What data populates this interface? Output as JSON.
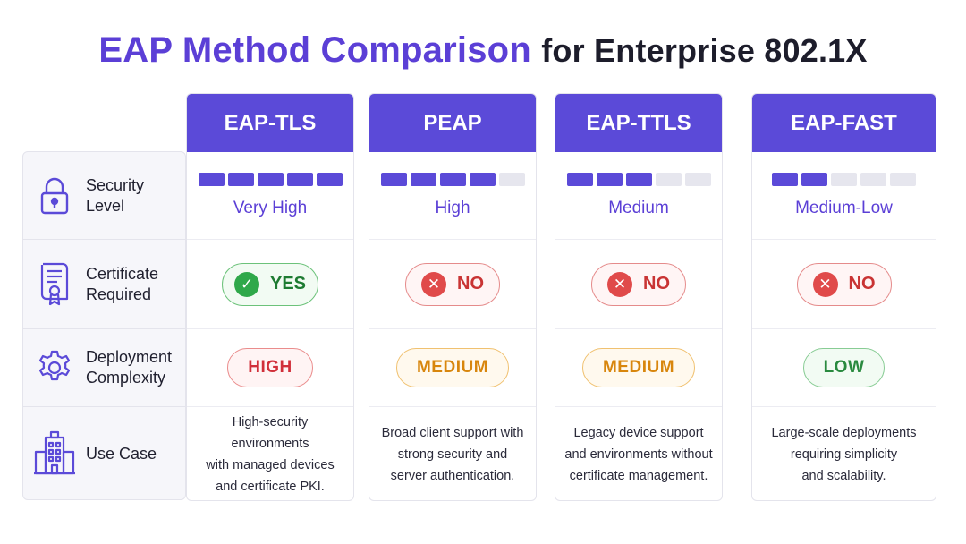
{
  "title": {
    "main": "EAP Method Comparison",
    "sub": "for Enterprise 802.1X"
  },
  "row_labels": [
    {
      "lines": [
        "Security Level"
      ],
      "icon": "padlock-icon"
    },
    {
      "lines": [
        "Certificate",
        "Required"
      ],
      "icon": "certificate-icon"
    },
    {
      "lines": [
        "Deployment",
        "Complexity"
      ],
      "icon": "gear-icon"
    },
    {
      "lines": [
        "Use Case"
      ],
      "icon": "building-icon"
    }
  ],
  "methods": [
    {
      "name": "EAP-TLS",
      "security_level": "Very High",
      "security_segments_filled": 5,
      "security_segments_total": 5,
      "certificate": "YES",
      "certificate_required": true,
      "complexity": "HIGH",
      "use_case": [
        "High-security environments",
        "with managed devices",
        "and certificate PKI."
      ]
    },
    {
      "name": "PEAP",
      "security_level": "High",
      "security_segments_filled": 4,
      "security_segments_total": 5,
      "certificate": "NO",
      "certificate_required": false,
      "complexity": "MEDIUM",
      "use_case": [
        "Broad client support with",
        "strong security and",
        "server authentication."
      ]
    },
    {
      "name": "EAP-TTLS",
      "security_level": "Medium",
      "security_segments_filled": 3,
      "security_segments_total": 5,
      "certificate": "NO",
      "certificate_required": false,
      "complexity": "MEDIUM",
      "use_case": [
        "Legacy device support",
        "and environments without",
        "certificate management."
      ]
    },
    {
      "name": "EAP-FAST",
      "security_level": "Medium-Low",
      "security_segments_filled": 2,
      "security_segments_total": 5,
      "certificate": "NO",
      "certificate_required": false,
      "complexity": "LOW",
      "use_case": [
        "Large-scale deployments",
        "requiring simplicity",
        "and scalability."
      ]
    }
  ],
  "colors": {
    "accent": "#5b4ad8",
    "title_accent": "#5b3fd6",
    "yes_green": "#2fa84a",
    "no_red": "#e04a4a",
    "high_red": "#d12f3a",
    "medium_orange": "#d8860d",
    "low_green": "#2a8a3f"
  }
}
